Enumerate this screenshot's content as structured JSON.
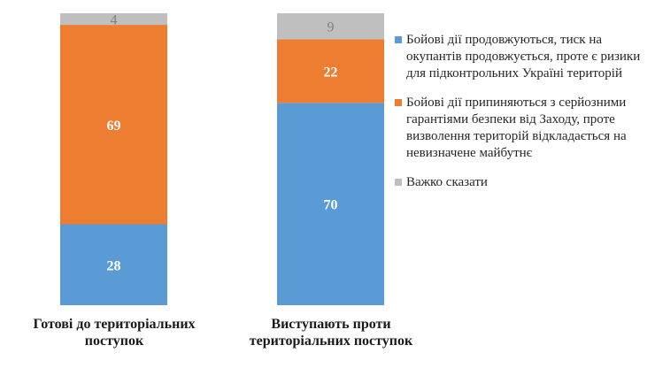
{
  "chart_data": {
    "type": "bar",
    "stacked": true,
    "categories": [
      "Готові до територіальних поступок",
      "Виступають проти територіальних поступок"
    ],
    "series": [
      {
        "name": "Бойові дії продовжуються, тиск на окупантів продовжується, проте є ризики для підконтрольних Україні територій",
        "values": [
          28,
          70
        ],
        "color": "#5b9bd5"
      },
      {
        "name": "Бойові дії припиняються з серйозними гарантіями безпеки від Заходу, проте визволення територій відкладається на невизначене майбутнє",
        "values": [
          69,
          22
        ],
        "color": "#ed7d31"
      },
      {
        "name": "Важко сказати",
        "values": [
          4,
          9
        ],
        "color": "#bfbfbf"
      }
    ],
    "label_colors": [
      "#ffffff",
      "#ffffff",
      "#7f7f7f"
    ],
    "ylim": [
      0,
      101
    ],
    "legend": "right",
    "title": "",
    "xlabel": "",
    "ylabel": ""
  }
}
